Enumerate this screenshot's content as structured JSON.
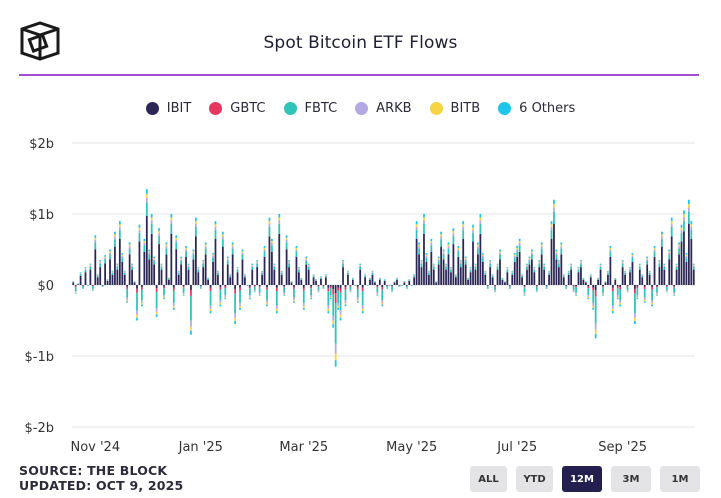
{
  "header": {
    "title": "Spot Bitcoin ETF Flows"
  },
  "legend": [
    {
      "label": "IBIT",
      "color": "#2b2655"
    },
    {
      "label": "GBTC",
      "color": "#e8375e"
    },
    {
      "label": "FBTC",
      "color": "#2ec4b6"
    },
    {
      "label": "ARKB",
      "color": "#b4a9e3"
    },
    {
      "label": "BITB",
      "color": "#f6d443"
    },
    {
      "label": "6 Others",
      "color": "#1ec7ea"
    }
  ],
  "chart_data": {
    "type": "bar",
    "stacked": true,
    "title": "Spot Bitcoin ETF Flows",
    "xlabel": "",
    "ylabel": "",
    "ylim": [
      -2,
      2
    ],
    "y_ticks": [
      2,
      1,
      0,
      -1,
      -2
    ],
    "y_tick_labels": [
      "$2b",
      "$1b",
      "$0",
      "$-1b",
      "$-2b"
    ],
    "x_tick_labels": [
      "Nov '24",
      "Jan '25",
      "Mar '25",
      "May '25",
      "Jul '25",
      "Sep '25"
    ],
    "x_tick_positions": [
      9,
      52,
      94,
      138,
      181,
      224
    ],
    "x_domain": [
      -0.5,
      253.5
    ],
    "grid": true,
    "units": "USD billions per trading day",
    "series_names": [
      "IBIT",
      "GBTC",
      "FBTC",
      "ARKB",
      "BITB",
      "6 Others"
    ],
    "series_colors": [
      "#2b2655",
      "#e8375e",
      "#2ec4b6",
      "#b4a9e3",
      "#f6d443",
      "#1ec7ea"
    ],
    "days_net": [
      0.05,
      -0.12,
      0.02,
      0.18,
      -0.05,
      0.25,
      0.0,
      0.3,
      -0.08,
      0.7,
      0.15,
      0.35,
      -0.02,
      0.42,
      0.08,
      0.5,
      0.2,
      0.75,
      0.3,
      0.9,
      0.45,
      0.2,
      -0.25,
      0.6,
      0.3,
      0.05,
      -0.5,
      0.85,
      -0.3,
      0.65,
      1.35,
      0.5,
      1.0,
      0.4,
      -0.45,
      0.8,
      0.3,
      -0.2,
      0.6,
      0.1,
      1.0,
      -0.35,
      0.7,
      0.2,
      0.4,
      -0.15,
      0.55,
      0.3,
      -0.7,
      0.5,
      0.95,
      0.25,
      -0.05,
      0.35,
      0.6,
      0.1,
      -0.4,
      0.45,
      0.9,
      0.2,
      -0.3,
      0.75,
      -0.2,
      0.4,
      0.15,
      0.6,
      -0.55,
      0.25,
      -0.35,
      0.5,
      0.15,
      0.0,
      -0.2,
      0.3,
      -0.1,
      0.35,
      -0.15,
      0.2,
      0.55,
      -0.3,
      0.95,
      0.65,
      0.3,
      -0.4,
      1.0,
      0.2,
      -0.15,
      0.7,
      0.35,
      0.05,
      -0.25,
      0.55,
      0.25,
      0.1,
      -0.35,
      0.4,
      0.3,
      -0.2,
      0.15,
      0.08,
      -0.1,
      0.12,
      -0.05,
      0.15,
      -0.4,
      -0.2,
      -0.6,
      -1.15,
      -0.35,
      -0.5,
      0.35,
      -0.3,
      0.2,
      -0.1,
      0.1,
      0.0,
      -0.25,
      0.3,
      -0.4,
      0.15,
      0.0,
      0.1,
      0.2,
      0.05,
      -0.15,
      0.1,
      -0.3,
      0.08,
      -0.05,
      0.0,
      -0.1,
      0.05,
      0.1,
      -0.02,
      0.0,
      0.05,
      -0.05,
      0.08,
      0.0,
      0.15,
      0.9,
      0.6,
      0.35,
      1.0,
      0.45,
      0.2,
      0.65,
      0.3,
      0.05,
      0.4,
      0.75,
      0.5,
      0.3,
      0.6,
      0.25,
      0.8,
      0.15,
      0.55,
      0.35,
      0.9,
      0.4,
      0.1,
      0.25,
      0.85,
      0.3,
      0.6,
      1.0,
      0.45,
      0.2,
      -0.05,
      0.35,
      0.15,
      -0.1,
      0.3,
      0.5,
      0.1,
      0.05,
      0.25,
      -0.05,
      0.2,
      0.45,
      0.55,
      0.65,
      0.15,
      -0.15,
      0.3,
      0.4,
      0.5,
      0.25,
      -0.1,
      0.35,
      0.6,
      0.3,
      -0.05,
      0.2,
      0.9,
      1.2,
      0.5,
      0.35,
      0.6,
      0.15,
      -0.05,
      0.2,
      0.3,
      -0.1,
      -0.15,
      0.25,
      0.35,
      0.1,
      0.05,
      -0.2,
      0.15,
      -0.35,
      -0.75,
      0.1,
      0.3,
      -0.15,
      0.05,
      0.2,
      0.55,
      -0.4,
      0.1,
      -0.2,
      -0.3,
      0.35,
      0.2,
      -0.1,
      0.25,
      0.45,
      -0.55,
      -0.2,
      0.3,
      0.15,
      -0.25,
      0.4,
      0.2,
      -0.3,
      0.55,
      -0.15,
      0.35,
      0.75,
      0.3,
      -0.1,
      0.5,
      0.95,
      -0.15,
      0.3,
      0.6,
      0.85,
      1.05,
      0.45,
      1.2,
      0.9,
      0.3
    ],
    "default_split_positive": {
      "IBIT": 0.72,
      "GBTC": 0.0,
      "FBTC": 0.14,
      "ARKB": 0.05,
      "BITB": 0.04,
      "6 Others": 0.05
    },
    "default_split_negative": {
      "IBIT": 0.1,
      "GBTC": 0.12,
      "FBTC": 0.5,
      "ARKB": 0.12,
      "BITB": 0.08,
      "6 Others": 0.08
    }
  },
  "footer": {
    "source": "SOURCE: THE BLOCK",
    "updated": "UPDATED: OCT 9, 2025"
  },
  "range_buttons": [
    {
      "label": "ALL",
      "active": false
    },
    {
      "label": "YTD",
      "active": false
    },
    {
      "label": "12M",
      "active": true
    },
    {
      "label": "3M",
      "active": false
    },
    {
      "label": "1M",
      "active": false
    }
  ]
}
